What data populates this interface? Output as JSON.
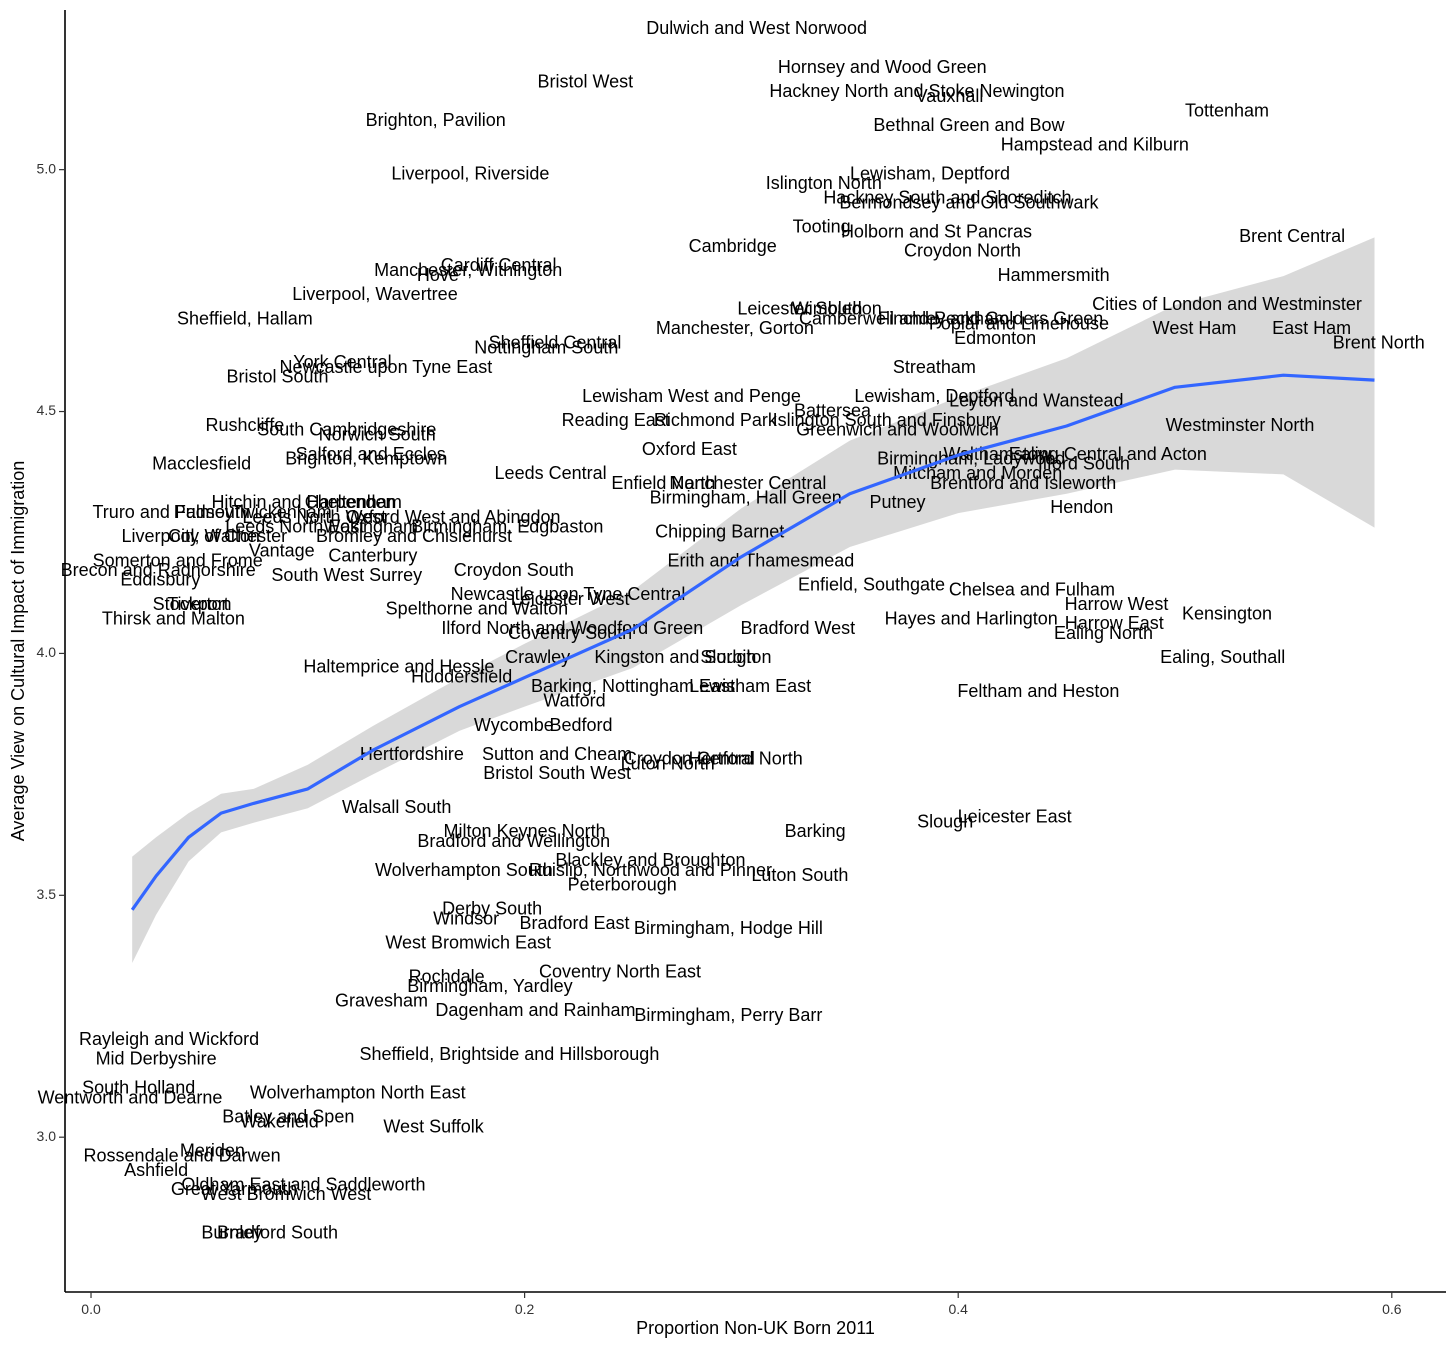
{
  "chart_data": {
    "type": "scatter",
    "xlabel": "Proportion Non-UK Born 2011",
    "ylabel": "Average View on Cultural Impact of Immigration",
    "xlim": [
      -0.012,
      0.625
    ],
    "ylim": [
      2.68,
      5.33
    ],
    "x_ticks": [
      {
        "value": 0.0,
        "label": "0.0"
      },
      {
        "value": 0.2,
        "label": "0.2"
      },
      {
        "value": 0.4,
        "label": "0.4"
      },
      {
        "value": 0.6,
        "label": "0.6"
      }
    ],
    "y_ticks": [
      {
        "value": 3.0,
        "label": "3.0"
      },
      {
        "value": 3.5,
        "label": "3.5"
      },
      {
        "value": 4.0,
        "label": "4.0"
      },
      {
        "value": 4.5,
        "label": "4.5"
      },
      {
        "value": 5.0,
        "label": "5.0"
      }
    ],
    "grid": false,
    "legend": "none",
    "colors": {
      "smooth_line": "#3366FF",
      "confidence_band": "#BFBFBF",
      "labels": "#000000"
    },
    "smooth": {
      "method": "loess",
      "points": [
        {
          "x": 0.019,
          "y": 3.47,
          "lo": 3.36,
          "hi": 3.58
        },
        {
          "x": 0.03,
          "y": 3.54,
          "lo": 3.46,
          "hi": 3.62
        },
        {
          "x": 0.045,
          "y": 3.62,
          "lo": 3.57,
          "hi": 3.67
        },
        {
          "x": 0.06,
          "y": 3.67,
          "lo": 3.63,
          "hi": 3.71
        },
        {
          "x": 0.075,
          "y": 3.69,
          "lo": 3.65,
          "hi": 3.72
        },
        {
          "x": 0.1,
          "y": 3.72,
          "lo": 3.68,
          "hi": 3.77
        },
        {
          "x": 0.13,
          "y": 3.8,
          "lo": 3.75,
          "hi": 3.85
        },
        {
          "x": 0.17,
          "y": 3.89,
          "lo": 3.84,
          "hi": 3.95
        },
        {
          "x": 0.2,
          "y": 3.95,
          "lo": 3.89,
          "hi": 4.02
        },
        {
          "x": 0.25,
          "y": 4.05,
          "lo": 3.97,
          "hi": 4.13
        },
        {
          "x": 0.3,
          "y": 4.2,
          "lo": 4.1,
          "hi": 4.3
        },
        {
          "x": 0.35,
          "y": 4.33,
          "lo": 4.22,
          "hi": 4.44
        },
        {
          "x": 0.4,
          "y": 4.41,
          "lo": 4.29,
          "hi": 4.53
        },
        {
          "x": 0.45,
          "y": 4.47,
          "lo": 4.33,
          "hi": 4.61
        },
        {
          "x": 0.5,
          "y": 4.55,
          "lo": 4.38,
          "hi": 4.72
        },
        {
          "x": 0.55,
          "y": 4.575,
          "lo": 4.37,
          "hi": 4.78
        },
        {
          "x": 0.592,
          "y": 4.565,
          "lo": 4.26,
          "hi": 4.86
        }
      ]
    },
    "points": [
      {
        "label": "Dulwich and West Norwood",
        "x": 0.307,
        "y": 5.29
      },
      {
        "label": "Hornsey and Wood Green",
        "x": 0.365,
        "y": 5.21
      },
      {
        "label": "Hackney North and Stoke Newington",
        "x": 0.381,
        "y": 5.16
      },
      {
        "label": "Vauxhall",
        "x": 0.396,
        "y": 5.15
      },
      {
        "label": "Tottenham",
        "x": 0.524,
        "y": 5.12
      },
      {
        "label": "Bristol West",
        "x": 0.228,
        "y": 5.18
      },
      {
        "label": "Brighton, Pavilion",
        "x": 0.159,
        "y": 5.1
      },
      {
        "label": "Bethnal Green and Bow",
        "x": 0.405,
        "y": 5.09
      },
      {
        "label": "Hampstead and Kilburn",
        "x": 0.463,
        "y": 5.05
      },
      {
        "label": "Liverpool, Riverside",
        "x": 0.175,
        "y": 4.99
      },
      {
        "label": "Lewisham, Deptford",
        "x": 0.387,
        "y": 4.99
      },
      {
        "label": "Islington North",
        "x": 0.338,
        "y": 4.97
      },
      {
        "label": "Hackney South and Shoreditch",
        "x": 0.395,
        "y": 4.94
      },
      {
        "label": "Bermondsey and Old Southwark",
        "x": 0.405,
        "y": 4.93
      },
      {
        "label": "Tooting",
        "x": 0.337,
        "y": 4.88
      },
      {
        "label": "Holborn and St Pancras",
        "x": 0.39,
        "y": 4.87
      },
      {
        "label": "Brent Central",
        "x": 0.554,
        "y": 4.86
      },
      {
        "label": "Cambridge",
        "x": 0.296,
        "y": 4.84
      },
      {
        "label": "Croydon North",
        "x": 0.402,
        "y": 4.83
      },
      {
        "label": "Cardiff Central",
        "x": 0.188,
        "y": 4.8
      },
      {
        "label": "Manchester, Withington",
        "x": 0.174,
        "y": 4.79
      },
      {
        "label": "Hove",
        "x": 0.16,
        "y": 4.78
      },
      {
        "label": "Hammersmith",
        "x": 0.444,
        "y": 4.78
      },
      {
        "label": "Liverpool, Wavertree",
        "x": 0.131,
        "y": 4.74
      },
      {
        "label": "Cities of London and Westminster",
        "x": 0.524,
        "y": 4.72
      },
      {
        "label": "Leicester South",
        "x": 0.327,
        "y": 4.71
      },
      {
        "label": "Wimbledon",
        "x": 0.344,
        "y": 4.71
      },
      {
        "label": "Camberwell and Peckham",
        "x": 0.375,
        "y": 4.69
      },
      {
        "label": "Finchley and Golders Green",
        "x": 0.415,
        "y": 4.69
      },
      {
        "label": "Poplar and Limehouse",
        "x": 0.428,
        "y": 4.68
      },
      {
        "label": "Sheffield, Hallam",
        "x": 0.071,
        "y": 4.69
      },
      {
        "label": "Manchester, Gorton",
        "x": 0.297,
        "y": 4.67
      },
      {
        "label": "West Ham",
        "x": 0.509,
        "y": 4.67
      },
      {
        "label": "East Ham",
        "x": 0.563,
        "y": 4.67
      },
      {
        "label": "Edmonton",
        "x": 0.417,
        "y": 4.65
      },
      {
        "label": "Brent North",
        "x": 0.594,
        "y": 4.64
      },
      {
        "label": "Sheffield Central",
        "x": 0.214,
        "y": 4.64
      },
      {
        "label": "Nottingham South",
        "x": 0.21,
        "y": 4.63
      },
      {
        "label": "York Central",
        "x": 0.116,
        "y": 4.6
      },
      {
        "label": "Newcastle upon Tyne East",
        "x": 0.136,
        "y": 4.59
      },
      {
        "label": "Bristol South",
        "x": 0.086,
        "y": 4.57
      },
      {
        "label": "Streatham",
        "x": 0.389,
        "y": 4.59
      },
      {
        "label": "Lewisham West and Penge",
        "x": 0.277,
        "y": 4.53
      },
      {
        "label": "Lewisham, Deptford",
        "x": 0.389,
        "y": 4.53
      },
      {
        "label": "Leyton and Wanstead",
        "x": 0.436,
        "y": 4.52
      },
      {
        "label": "Battersea",
        "x": 0.342,
        "y": 4.5
      },
      {
        "label": "Reading East",
        "x": 0.242,
        "y": 4.48
      },
      {
        "label": "Richmond Park",
        "x": 0.288,
        "y": 4.48
      },
      {
        "label": "Islington South and Finsbury",
        "x": 0.367,
        "y": 4.48
      },
      {
        "label": "Westminster North",
        "x": 0.53,
        "y": 4.47
      },
      {
        "label": "Rushcliffe",
        "x": 0.071,
        "y": 4.47
      },
      {
        "label": "South Cambridgeshire",
        "x": 0.118,
        "y": 4.46
      },
      {
        "label": "Norwich South",
        "x": 0.132,
        "y": 4.45
      },
      {
        "label": "Greenwich and Woolwich",
        "x": 0.372,
        "y": 4.46
      },
      {
        "label": "Oxford East",
        "x": 0.276,
        "y": 4.42
      },
      {
        "label": "Salford and Eccles",
        "x": 0.129,
        "y": 4.41
      },
      {
        "label": "Brighton, Kemptown",
        "x": 0.127,
        "y": 4.4
      },
      {
        "label": "Walthamstow",
        "x": 0.418,
        "y": 4.41
      },
      {
        "label": "Ealing Central and Acton",
        "x": 0.469,
        "y": 4.41
      },
      {
        "label": "Birmingham, Ladywood",
        "x": 0.406,
        "y": 4.4
      },
      {
        "label": "Ilford South",
        "x": 0.458,
        "y": 4.39
      },
      {
        "label": "Macclesfield",
        "x": 0.051,
        "y": 4.39
      },
      {
        "label": "Leeds Central",
        "x": 0.212,
        "y": 4.37
      },
      {
        "label": "Mitcham and Morden",
        "x": 0.409,
        "y": 4.37
      },
      {
        "label": "Enfield North",
        "x": 0.264,
        "y": 4.35
      },
      {
        "label": "Manchester Central",
        "x": 0.303,
        "y": 4.35
      },
      {
        "label": "Brentford and Isleworth",
        "x": 0.43,
        "y": 4.35
      },
      {
        "label": "Birmingham, Hall Green",
        "x": 0.302,
        "y": 4.32
      },
      {
        "label": "Putney",
        "x": 0.372,
        "y": 4.31
      },
      {
        "label": "Hendon",
        "x": 0.457,
        "y": 4.3
      },
      {
        "label": "Hitchin and Harpenden",
        "x": 0.098,
        "y": 4.31
      },
      {
        "label": "Cheltenham",
        "x": 0.121,
        "y": 4.31
      },
      {
        "label": "Truro and Falmouth",
        "x": 0.037,
        "y": 4.29
      },
      {
        "label": "Pudsey",
        "x": 0.052,
        "y": 4.29
      },
      {
        "label": "Twickenham",
        "x": 0.088,
        "y": 4.29
      },
      {
        "label": "Leeds North West",
        "x": 0.103,
        "y": 4.28
      },
      {
        "label": "Oxford West and Abingdon",
        "x": 0.167,
        "y": 4.28
      },
      {
        "label": "Leeds North East",
        "x": 0.094,
        "y": 4.26
      },
      {
        "label": "Wokingham",
        "x": 0.129,
        "y": 4.26
      },
      {
        "label": "Birmingham, Edgbaston",
        "x": 0.192,
        "y": 4.26
      },
      {
        "label": "Chipping Barnet",
        "x": 0.29,
        "y": 4.25
      },
      {
        "label": "Liverpool, Walton",
        "x": 0.046,
        "y": 4.24
      },
      {
        "label": "City of Chester",
        "x": 0.063,
        "y": 4.24
      },
      {
        "label": "Bromley and Chislehurst",
        "x": 0.149,
        "y": 4.24
      },
      {
        "label": "Vantage",
        "x": 0.088,
        "y": 4.21
      },
      {
        "label": "Canterbury",
        "x": 0.13,
        "y": 4.2
      },
      {
        "label": "Somerton and Frome",
        "x": 0.04,
        "y": 4.19
      },
      {
        "label": "Erith and Thamesmead",
        "x": 0.309,
        "y": 4.19
      },
      {
        "label": "Brecon and Radnorshire",
        "x": 0.031,
        "y": 4.17
      },
      {
        "label": "Croydon South",
        "x": 0.195,
        "y": 4.17
      },
      {
        "label": "South West Surrey",
        "x": 0.118,
        "y": 4.16
      },
      {
        "label": "Eddisbury",
        "x": 0.032,
        "y": 4.15
      },
      {
        "label": "Enfield, Southgate",
        "x": 0.36,
        "y": 4.14
      },
      {
        "label": "Chelsea and Fulham",
        "x": 0.434,
        "y": 4.13
      },
      {
        "label": "Newcastle upon Tyne Central",
        "x": 0.22,
        "y": 4.12
      },
      {
        "label": "Leicester West",
        "x": 0.221,
        "y": 4.11
      },
      {
        "label": "Stockport",
        "x": 0.046,
        "y": 4.1
      },
      {
        "label": "Tiverton",
        "x": 0.05,
        "y": 4.1
      },
      {
        "label": "Harrow West",
        "x": 0.473,
        "y": 4.1
      },
      {
        "label": "Spelthorne and Walton",
        "x": 0.178,
        "y": 4.09
      },
      {
        "label": "Kensington",
        "x": 0.524,
        "y": 4.08
      },
      {
        "label": "Thirsk and Malton",
        "x": 0.038,
        "y": 4.07
      },
      {
        "label": "Hayes and Harlington",
        "x": 0.406,
        "y": 4.07
      },
      {
        "label": "Ilford North and Woodford Green",
        "x": 0.222,
        "y": 4.05
      },
      {
        "label": "Harrow East",
        "x": 0.472,
        "y": 4.06
      },
      {
        "label": "Bradford West",
        "x": 0.326,
        "y": 4.05
      },
      {
        "label": "Ealing North",
        "x": 0.467,
        "y": 4.04
      },
      {
        "label": "Coventry South",
        "x": 0.221,
        "y": 4.04
      },
      {
        "label": "Crawley",
        "x": 0.206,
        "y": 3.99
      },
      {
        "label": "Kingston and Surbiton",
        "x": 0.273,
        "y": 3.99
      },
      {
        "label": "Slough",
        "x": 0.294,
        "y": 3.99
      },
      {
        "label": "Ealing, Southall",
        "x": 0.522,
        "y": 3.99
      },
      {
        "label": "Haltemprice and Hessle",
        "x": 0.142,
        "y": 3.97
      },
      {
        "label": "Huddersfield",
        "x": 0.171,
        "y": 3.95
      },
      {
        "label": "Barking, Nottingham East",
        "x": 0.25,
        "y": 3.93
      },
      {
        "label": "Lewisham East",
        "x": 0.304,
        "y": 3.93
      },
      {
        "label": "Feltham and Heston",
        "x": 0.437,
        "y": 3.92
      },
      {
        "label": "Watford",
        "x": 0.223,
        "y": 3.9
      },
      {
        "label": "Bedford",
        "x": 0.226,
        "y": 3.85
      },
      {
        "label": "Wycombe",
        "x": 0.195,
        "y": 3.85
      },
      {
        "label": "Hertfordshire",
        "x": 0.148,
        "y": 3.79
      },
      {
        "label": "Sutton and Cheam",
        "x": 0.215,
        "y": 3.79
      },
      {
        "label": "Croydon Central",
        "x": 0.276,
        "y": 3.78
      },
      {
        "label": "Hertford North",
        "x": 0.302,
        "y": 3.78
      },
      {
        "label": "Luton North",
        "x": 0.266,
        "y": 3.77
      },
      {
        "label": "Bristol South West",
        "x": 0.215,
        "y": 3.75
      },
      {
        "label": "Walsall South",
        "x": 0.141,
        "y": 3.68
      },
      {
        "label": "Barking",
        "x": 0.334,
        "y": 3.63
      },
      {
        "label": "Leicester East",
        "x": 0.426,
        "y": 3.66
      },
      {
        "label": "Slough",
        "x": 0.394,
        "y": 3.65
      },
      {
        "label": "Milton Keynes North",
        "x": 0.2,
        "y": 3.63
      },
      {
        "label": "Wolverhampton South",
        "x": 0.172,
        "y": 3.55
      },
      {
        "label": "Bradford and Wellington",
        "x": 0.195,
        "y": 3.61
      },
      {
        "label": "Blackley and Broughton",
        "x": 0.258,
        "y": 3.57
      },
      {
        "label": "Ruislip, Northwood and Pinner",
        "x": 0.258,
        "y": 3.55
      },
      {
        "label": "Luton South",
        "x": 0.327,
        "y": 3.54
      },
      {
        "label": "Peterborough",
        "x": 0.245,
        "y": 3.52
      },
      {
        "label": "Derby South",
        "x": 0.185,
        "y": 3.47
      },
      {
        "label": "Windsor",
        "x": 0.173,
        "y": 3.45
      },
      {
        "label": "Bradford East",
        "x": 0.223,
        "y": 3.44
      },
      {
        "label": "Birmingham, Hodge Hill",
        "x": 0.294,
        "y": 3.43
      },
      {
        "label": "West Bromwich East",
        "x": 0.174,
        "y": 3.4
      },
      {
        "label": "Coventry North East",
        "x": 0.244,
        "y": 3.34
      },
      {
        "label": "Birmingham, Yardley",
        "x": 0.184,
        "y": 3.31
      },
      {
        "label": "Rochdale",
        "x": 0.164,
        "y": 3.33
      },
      {
        "label": "Gravesham",
        "x": 0.134,
        "y": 3.28
      },
      {
        "label": "Dagenham and Rainham",
        "x": 0.205,
        "y": 3.26
      },
      {
        "label": "Birmingham, Perry Barr",
        "x": 0.294,
        "y": 3.25
      },
      {
        "label": "Sheffield, Brightside and Hillsborough",
        "x": 0.193,
        "y": 3.17
      },
      {
        "label": "Wolverhampton North East",
        "x": 0.123,
        "y": 3.09
      },
      {
        "label": "West Suffolk",
        "x": 0.158,
        "y": 3.02
      },
      {
        "label": "Batley and Spen",
        "x": 0.091,
        "y": 3.04
      },
      {
        "label": "Wakefield",
        "x": 0.087,
        "y": 3.03
      },
      {
        "label": "Meriden",
        "x": 0.056,
        "y": 2.97
      },
      {
        "label": "Rossendale and Darwen",
        "x": 0.042,
        "y": 2.96
      },
      {
        "label": "Ashfield",
        "x": 0.03,
        "y": 2.93
      },
      {
        "label": "Oldham East and Saddleworth",
        "x": 0.098,
        "y": 2.9
      },
      {
        "label": "Great Yarmouth",
        "x": 0.066,
        "y": 2.89
      },
      {
        "label": "West Bromwich West",
        "x": 0.09,
        "y": 2.88
      },
      {
        "label": "Burnley",
        "x": 0.065,
        "y": 2.8
      },
      {
        "label": "Bradford South",
        "x": 0.086,
        "y": 2.8
      },
      {
        "label": "Wentworth and Dearne",
        "x": 0.018,
        "y": 3.08
      },
      {
        "label": "Mid Derbyshire",
        "x": 0.03,
        "y": 3.16
      },
      {
        "label": "Rayleigh and Wickford",
        "x": 0.036,
        "y": 3.2
      },
      {
        "label": "South Holland",
        "x": 0.022,
        "y": 3.1
      }
    ]
  }
}
